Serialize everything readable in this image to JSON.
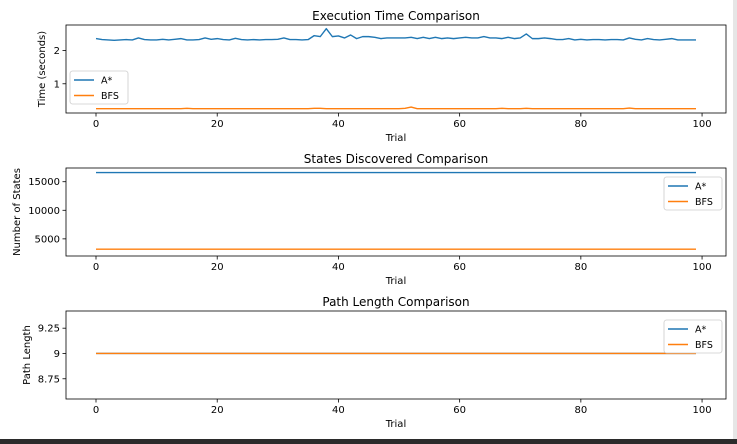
{
  "chart_data": [
    {
      "type": "line",
      "title": "Execution Time Comparison",
      "xlabel": "Trial",
      "ylabel": "Time (seconds)",
      "xlim": [
        -4.95,
        103.95
      ],
      "ylim": [
        0.12,
        2.77
      ],
      "xticks": [
        0,
        20,
        40,
        60,
        80,
        100
      ],
      "yticks": [
        1,
        2
      ],
      "legend_loc": "lower-left",
      "series": [
        {
          "name": "A*",
          "color": "#1f77b4",
          "values": [
            2.36,
            2.33,
            2.32,
            2.31,
            2.32,
            2.33,
            2.32,
            2.38,
            2.33,
            2.32,
            2.32,
            2.34,
            2.32,
            2.34,
            2.36,
            2.32,
            2.32,
            2.33,
            2.38,
            2.34,
            2.36,
            2.33,
            2.32,
            2.37,
            2.33,
            2.32,
            2.33,
            2.32,
            2.33,
            2.33,
            2.34,
            2.38,
            2.33,
            2.33,
            2.32,
            2.33,
            2.45,
            2.42,
            2.66,
            2.42,
            2.44,
            2.38,
            2.47,
            2.36,
            2.42,
            2.42,
            2.4,
            2.36,
            2.38,
            2.38,
            2.38,
            2.38,
            2.4,
            2.36,
            2.4,
            2.36,
            2.4,
            2.36,
            2.38,
            2.36,
            2.38,
            2.4,
            2.38,
            2.38,
            2.42,
            2.38,
            2.38,
            2.36,
            2.4,
            2.36,
            2.38,
            2.5,
            2.36,
            2.36,
            2.38,
            2.36,
            2.33,
            2.33,
            2.36,
            2.32,
            2.34,
            2.32,
            2.33,
            2.33,
            2.32,
            2.33,
            2.33,
            2.32,
            2.38,
            2.34,
            2.32,
            2.36,
            2.33,
            2.32,
            2.34,
            2.36,
            2.32,
            2.32,
            2.32,
            2.32
          ]
        },
        {
          "name": "BFS",
          "color": "#ff7f0e",
          "values": [
            0.25,
            0.25,
            0.25,
            0.25,
            0.25,
            0.25,
            0.25,
            0.25,
            0.25,
            0.25,
            0.25,
            0.25,
            0.25,
            0.25,
            0.25,
            0.26,
            0.25,
            0.25,
            0.25,
            0.25,
            0.25,
            0.25,
            0.25,
            0.25,
            0.25,
            0.25,
            0.25,
            0.25,
            0.25,
            0.25,
            0.25,
            0.25,
            0.25,
            0.25,
            0.25,
            0.25,
            0.26,
            0.26,
            0.25,
            0.25,
            0.25,
            0.25,
            0.25,
            0.25,
            0.25,
            0.25,
            0.25,
            0.25,
            0.25,
            0.25,
            0.25,
            0.26,
            0.3,
            0.25,
            0.25,
            0.25,
            0.25,
            0.25,
            0.25,
            0.25,
            0.25,
            0.25,
            0.25,
            0.25,
            0.25,
            0.25,
            0.25,
            0.26,
            0.25,
            0.25,
            0.25,
            0.26,
            0.25,
            0.25,
            0.25,
            0.25,
            0.25,
            0.25,
            0.25,
            0.25,
            0.25,
            0.25,
            0.25,
            0.25,
            0.25,
            0.25,
            0.25,
            0.25,
            0.27,
            0.25,
            0.25,
            0.25,
            0.25,
            0.25,
            0.25,
            0.25,
            0.25,
            0.25,
            0.25,
            0.25
          ]
        }
      ]
    },
    {
      "type": "line",
      "title": "States Discovered Comparison",
      "xlabel": "Trial",
      "ylabel": "Number of States",
      "xlim": [
        -4.95,
        103.95
      ],
      "ylim": [
        2000,
        17400
      ],
      "xticks": [
        0,
        20,
        40,
        60,
        80,
        100
      ],
      "yticks": [
        5000,
        10000,
        15000
      ],
      "legend_loc": "upper-right",
      "series": [
        {
          "name": "A*",
          "color": "#1f77b4",
          "constant": 16600
        },
        {
          "name": "BFS",
          "color": "#ff7f0e",
          "constant": 3200
        }
      ]
    },
    {
      "type": "line",
      "title": "Path Length Comparison",
      "xlabel": "Trial",
      "ylabel": "Path Length",
      "xlim": [
        -4.95,
        103.95
      ],
      "ylim": [
        8.55,
        9.42
      ],
      "xticks": [
        0,
        20,
        40,
        60,
        80,
        100
      ],
      "yticks": [
        8.75,
        9.0,
        9.25
      ],
      "legend_loc": "upper-right",
      "series": [
        {
          "name": "A*",
          "color": "#1f77b4",
          "constant": 9.0
        },
        {
          "name": "BFS",
          "color": "#ff7f0e",
          "constant": 9.0
        }
      ]
    }
  ]
}
